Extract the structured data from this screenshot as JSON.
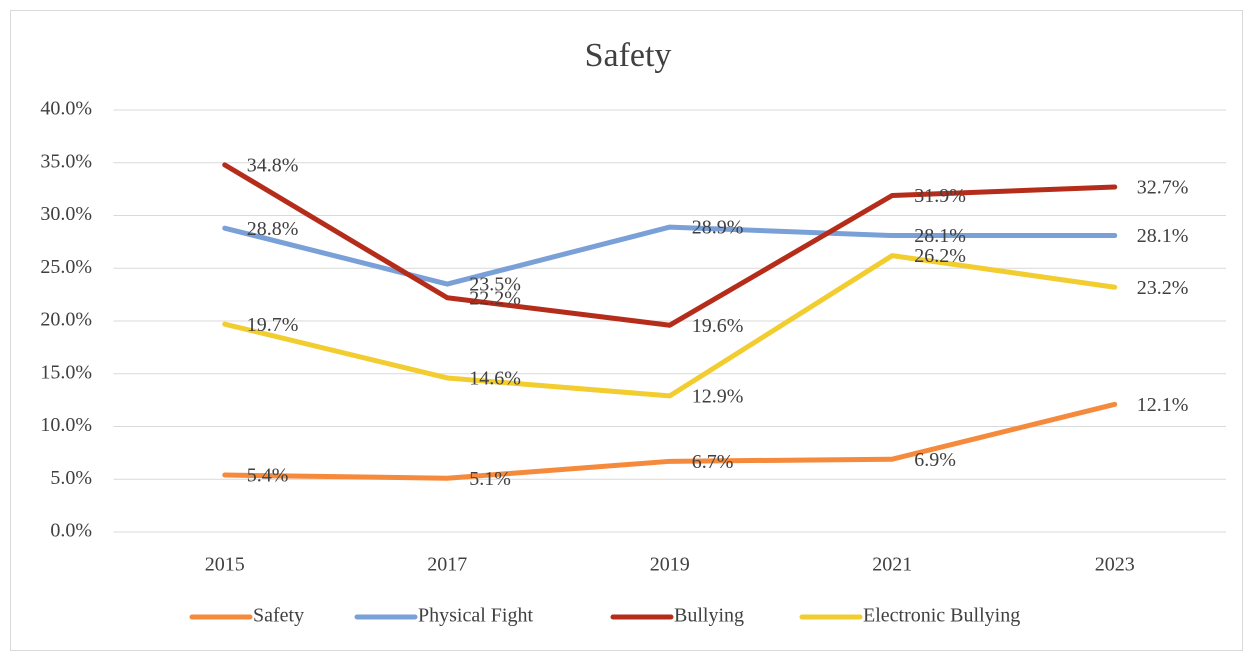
{
  "chart_data": {
    "type": "line",
    "title": "Safety",
    "categories": [
      "2015",
      "2017",
      "2019",
      "2021",
      "2023"
    ],
    "series": [
      {
        "name": "Safety",
        "color": "#f58a3c",
        "values": [
          5.4,
          5.1,
          6.7,
          6.9,
          12.1
        ],
        "value_labels": [
          "5.4%",
          "5.1%",
          "6.7%",
          "6.9%",
          "12.1%"
        ]
      },
      {
        "name": "Physical Fight",
        "color": "#7aa0d8",
        "values": [
          28.8,
          23.5,
          28.9,
          28.1,
          28.1
        ],
        "value_labels": [
          "28.8%",
          "23.5%",
          "28.9%",
          "28.1%",
          "28.1%"
        ]
      },
      {
        "name": "Bullying",
        "color": "#b52d1a",
        "values": [
          34.8,
          22.2,
          19.6,
          31.9,
          32.7
        ],
        "value_labels": [
          "34.8%",
          "22.2%",
          "19.6%",
          "31.9%",
          "32.7%"
        ]
      },
      {
        "name": "Electronic Bullying",
        "color": "#f2cd30",
        "values": [
          19.7,
          14.6,
          12.9,
          26.2,
          23.2
        ],
        "value_labels": [
          "19.7%",
          "14.6%",
          "12.9%",
          "26.2%",
          "23.2%"
        ]
      }
    ],
    "ylim": [
      0,
      40
    ],
    "yticks": [
      {
        "value": 0,
        "label": "0.0%"
      },
      {
        "value": 5,
        "label": "5.0%"
      },
      {
        "value": 10,
        "label": "10.0%"
      },
      {
        "value": 15,
        "label": "15.0%"
      },
      {
        "value": 20,
        "label": "20.0%"
      },
      {
        "value": 25,
        "label": "25.0%"
      },
      {
        "value": 30,
        "label": "30.0%"
      },
      {
        "value": 35,
        "label": "35.0%"
      },
      {
        "value": 40,
        "label": "40.0%"
      }
    ],
    "grid": true,
    "legend": "bottom"
  }
}
